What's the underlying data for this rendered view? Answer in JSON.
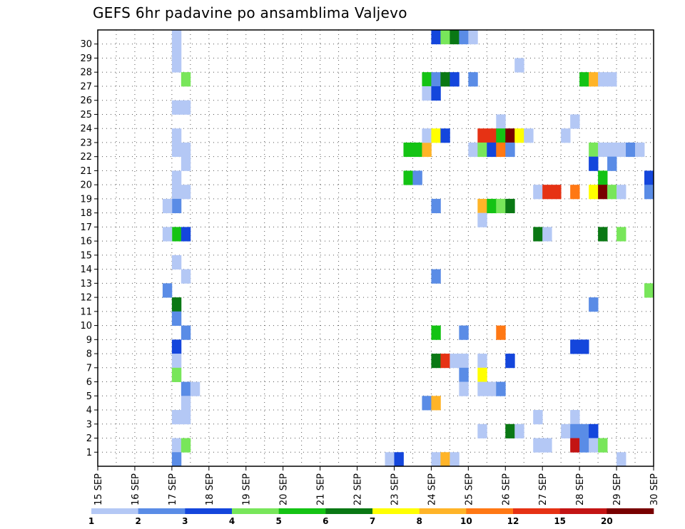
{
  "chart_data": {
    "type": "heatmap",
    "title": "GEFS 6hr padavine po ansamblima Valjevo",
    "xlabel": "",
    "ylabel": "",
    "x_ticks": [
      "15 SEP",
      "16 SEP",
      "17 SEP",
      "18 SEP",
      "19 SEP",
      "20 SEP",
      "21 SEP",
      "22 SEP",
      "23 SEP",
      "24 SEP",
      "25 SEP",
      "26 SEP",
      "27 SEP",
      "28 SEP",
      "29 SEP",
      "30 SEP"
    ],
    "y_ticks": [
      "1",
      "2",
      "3",
      "4",
      "5",
      "6",
      "7",
      "8",
      "9",
      "10",
      "11",
      "12",
      "13",
      "14",
      "15",
      "16",
      "17",
      "18",
      "19",
      "20",
      "21",
      "22",
      "23",
      "24",
      "25",
      "26",
      "27",
      "28",
      "29",
      "30"
    ],
    "grid": true,
    "legend": "bottom",
    "colorbar": {
      "labels": [
        "1",
        "2",
        "3",
        "4",
        "5",
        "6",
        "7",
        "8",
        "10",
        "12",
        "15",
        "20"
      ],
      "colors": [
        "#b4c8f5",
        "#5a8ce6",
        "#1446dc",
        "#78e65a",
        "#14c314",
        "#0a7814",
        "#ffff00",
        "#ffb428",
        "#ff7814",
        "#e63214",
        "#c31414",
        "#780000"
      ]
    },
    "cells_note": "each cell = [time step (6h steps from 15 SEP 00z), ensemble member, color class 1..12]",
    "cells": [
      [
        8,
        30,
        1
      ],
      [
        8,
        29,
        1
      ],
      [
        8,
        28,
        1
      ],
      [
        8,
        25,
        1
      ],
      [
        8,
        23,
        1
      ],
      [
        8,
        22,
        1
      ],
      [
        8,
        20,
        1
      ],
      [
        8,
        19,
        1
      ],
      [
        8,
        18,
        2
      ],
      [
        8,
        16,
        5
      ],
      [
        8,
        14,
        1
      ],
      [
        8,
        11,
        6
      ],
      [
        8,
        10,
        2
      ],
      [
        8,
        8,
        3
      ],
      [
        8,
        7,
        1
      ],
      [
        8,
        6,
        4
      ],
      [
        8,
        3,
        1
      ],
      [
        8,
        1,
        1
      ],
      [
        8,
        0,
        2
      ],
      [
        9,
        27,
        4
      ],
      [
        9,
        25,
        1
      ],
      [
        9,
        22,
        1
      ],
      [
        9,
        21,
        1
      ],
      [
        9,
        19,
        1
      ],
      [
        9,
        16,
        3
      ],
      [
        9,
        13,
        1
      ],
      [
        9,
        9,
        2
      ],
      [
        9,
        5,
        2
      ],
      [
        9,
        4,
        1
      ],
      [
        9,
        3,
        1
      ],
      [
        9,
        1,
        4
      ],
      [
        7,
        18,
        1
      ],
      [
        7,
        16,
        1
      ],
      [
        7,
        12,
        2
      ],
      [
        10,
        5,
        1
      ],
      [
        31,
        0,
        1
      ],
      [
        32,
        0,
        3
      ],
      [
        33,
        22,
        5
      ],
      [
        33,
        20,
        5
      ],
      [
        34,
        22,
        5
      ],
      [
        34,
        20,
        2
      ],
      [
        35,
        22,
        8
      ],
      [
        35,
        27,
        5
      ],
      [
        35,
        26,
        1
      ],
      [
        35,
        23,
        1
      ],
      [
        35,
        4,
        2
      ],
      [
        36,
        27,
        2
      ],
      [
        36,
        26,
        3
      ],
      [
        36,
        23,
        7
      ],
      [
        36,
        18,
        2
      ],
      [
        36,
        13,
        2
      ],
      [
        36,
        9,
        5
      ],
      [
        36,
        7,
        6
      ],
      [
        36,
        4,
        8
      ],
      [
        36,
        0,
        1
      ],
      [
        37,
        27,
        6
      ],
      [
        37,
        23,
        3
      ],
      [
        37,
        7,
        10
      ],
      [
        37,
        0,
        8
      ],
      [
        38,
        27,
        3
      ],
      [
        38,
        7,
        1
      ],
      [
        38,
        0,
        1
      ],
      [
        36,
        30,
        3
      ],
      [
        37,
        30,
        4
      ],
      [
        38,
        30,
        6
      ],
      [
        39,
        30,
        2
      ],
      [
        40,
        30,
        1
      ],
      [
        39,
        7,
        1
      ],
      [
        39,
        6,
        2
      ],
      [
        39,
        5,
        1
      ],
      [
        39,
        9,
        2
      ],
      [
        40,
        27,
        2
      ],
      [
        40,
        22,
        1
      ],
      [
        41,
        23,
        10
      ],
      [
        41,
        22,
        4
      ],
      [
        41,
        18,
        8
      ],
      [
        41,
        17,
        1
      ],
      [
        41,
        7,
        1
      ],
      [
        41,
        6,
        7
      ],
      [
        41,
        5,
        1
      ],
      [
        41,
        2,
        1
      ],
      [
        42,
        23,
        10
      ],
      [
        42,
        22,
        3
      ],
      [
        42,
        18,
        5
      ],
      [
        42,
        5,
        1
      ],
      [
        43,
        24,
        1
      ],
      [
        43,
        23,
        5
      ],
      [
        43,
        22,
        9
      ],
      [
        43,
        18,
        4
      ],
      [
        43,
        9,
        9
      ],
      [
        43,
        5,
        2
      ],
      [
        44,
        23,
        12
      ],
      [
        44,
        22,
        2
      ],
      [
        44,
        18,
        6
      ],
      [
        44,
        7,
        3
      ],
      [
        44,
        2,
        6
      ],
      [
        45,
        28,
        1
      ],
      [
        45,
        23,
        7
      ],
      [
        45,
        2,
        1
      ],
      [
        46,
        23,
        1
      ],
      [
        47,
        19,
        1
      ],
      [
        47,
        16,
        6
      ],
      [
        47,
        3,
        1
      ],
      [
        47,
        1,
        1
      ],
      [
        48,
        19,
        10
      ],
      [
        48,
        16,
        1
      ],
      [
        48,
        1,
        1
      ],
      [
        49,
        19,
        10
      ],
      [
        50,
        23,
        1
      ],
      [
        50,
        2,
        1
      ],
      [
        51,
        24,
        1
      ],
      [
        51,
        19,
        9
      ],
      [
        51,
        8,
        3
      ],
      [
        51,
        3,
        1
      ],
      [
        51,
        2,
        2
      ],
      [
        51,
        1,
        11
      ],
      [
        52,
        27,
        5
      ],
      [
        52,
        8,
        3
      ],
      [
        52,
        2,
        2
      ],
      [
        52,
        1,
        2
      ],
      [
        53,
        27,
        8
      ],
      [
        53,
        22,
        4
      ],
      [
        53,
        21,
        3
      ],
      [
        53,
        19,
        7
      ],
      [
        53,
        11,
        2
      ],
      [
        53,
        2,
        3
      ],
      [
        53,
        1,
        1
      ],
      [
        54,
        27,
        1
      ],
      [
        54,
        22,
        1
      ],
      [
        54,
        20,
        5
      ],
      [
        54,
        19,
        12
      ],
      [
        54,
        16,
        6
      ],
      [
        54,
        1,
        4
      ],
      [
        55,
        27,
        1
      ],
      [
        55,
        22,
        1
      ],
      [
        55,
        21,
        2
      ],
      [
        55,
        19,
        4
      ],
      [
        56,
        22,
        1
      ],
      [
        56,
        19,
        1
      ],
      [
        56,
        16,
        4
      ],
      [
        56,
        0,
        1
      ],
      [
        57,
        22,
        2
      ],
      [
        58,
        22,
        1
      ],
      [
        59,
        20,
        3
      ],
      [
        59,
        19,
        2
      ],
      [
        59,
        12,
        4
      ]
    ]
  }
}
